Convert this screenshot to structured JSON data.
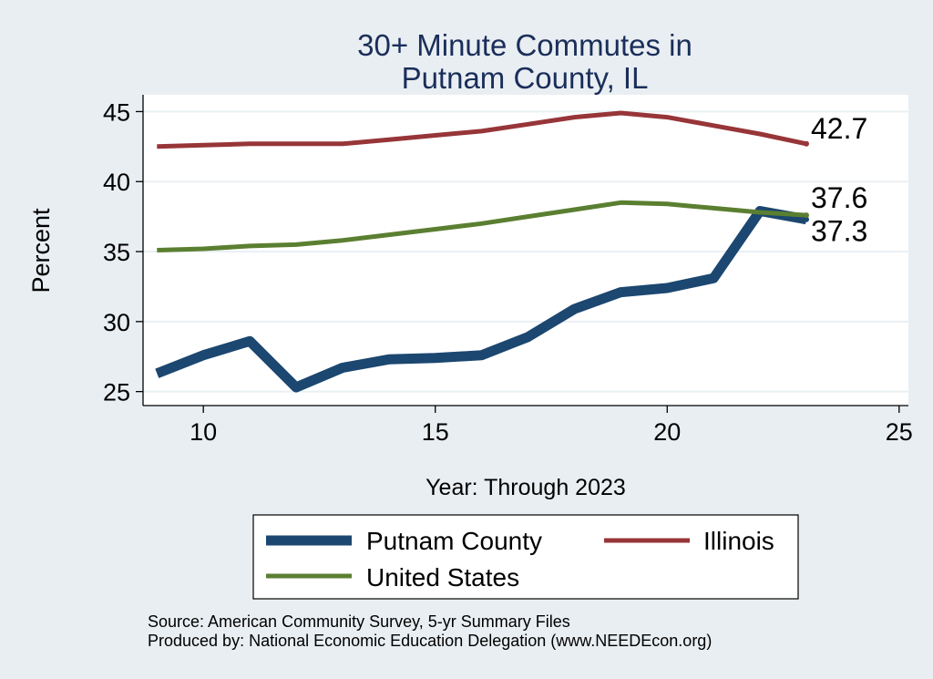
{
  "colors": {
    "background": "#e9eef2",
    "plot_area": "#ffffff",
    "gridline": "#eaf0f3",
    "title": "#1a2e5a",
    "text": "#000000",
    "putnam": "#1b4770",
    "illinois": "#973538",
    "united_states": "#5b7f31"
  },
  "chart_data": {
    "type": "line",
    "title": "30+ Minute Commutes in",
    "subtitle": "Putnam County, IL",
    "xlabel": "Year: Through 2023",
    "ylabel": "Percent",
    "xlim": [
      8.7,
      25.2
    ],
    "ylim": [
      24.0,
      46.2
    ],
    "x_ticks": [
      10,
      15,
      20,
      25
    ],
    "y_ticks": [
      25,
      30,
      35,
      40,
      45
    ],
    "grid": true,
    "legend_position": "bottom",
    "x": [
      9,
      10,
      11,
      12,
      13,
      14,
      15,
      16,
      17,
      18,
      19,
      20,
      21,
      22,
      23
    ],
    "series": [
      {
        "name": "Putnam County",
        "color_key": "putnam",
        "weight": "thick",
        "values": [
          26.3,
          27.6,
          28.6,
          25.3,
          26.7,
          27.3,
          27.4,
          27.6,
          28.9,
          30.9,
          32.1,
          32.4,
          33.1,
          37.9,
          37.3
        ],
        "end_label": "37.3"
      },
      {
        "name": "Illinois",
        "color_key": "illinois",
        "weight": "medium",
        "values": [
          42.5,
          42.6,
          42.7,
          42.7,
          42.7,
          43.0,
          43.3,
          43.6,
          44.1,
          44.6,
          44.9,
          44.6,
          44.0,
          43.4,
          42.7
        ],
        "end_label": "42.7"
      },
      {
        "name": "United States",
        "color_key": "united_states",
        "weight": "medium",
        "values": [
          35.1,
          35.2,
          35.4,
          35.5,
          35.8,
          36.2,
          36.6,
          37.0,
          37.5,
          38.0,
          38.5,
          38.4,
          38.1,
          37.8,
          37.6
        ],
        "end_label": "37.6"
      }
    ]
  },
  "legend": {
    "items": [
      {
        "label": "Putnam County",
        "color_key": "putnam"
      },
      {
        "label": "Illinois",
        "color_key": "illinois"
      },
      {
        "label": "United States",
        "color_key": "united_states"
      }
    ]
  },
  "footer": {
    "source": "Source: American Community Survey, 5-yr Summary Files",
    "produced": "Produced by: National Economic Education Delegation (www.NEEDEcon.org)"
  }
}
